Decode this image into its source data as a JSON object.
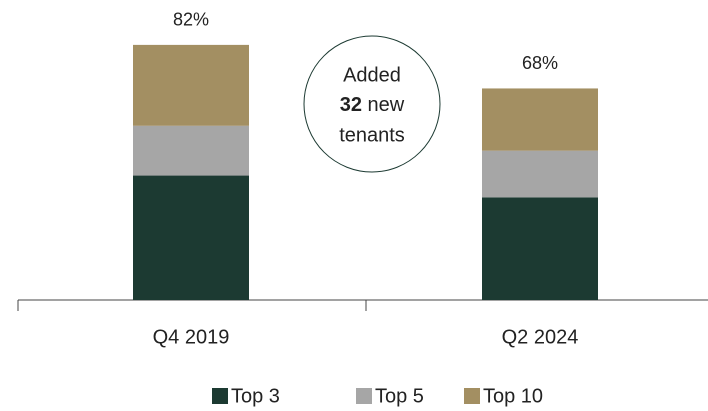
{
  "chart_data": {
    "type": "stacked_bar",
    "categories": [
      "Q4 2019",
      "Q2 2024"
    ],
    "series": [
      {
        "name": "Top 3",
        "color": "#1c3a32",
        "values": [
          40,
          33
        ]
      },
      {
        "name": "Top 5",
        "color": "#a6a6a6",
        "values": [
          16,
          15
        ]
      },
      {
        "name": "Top 10",
        "color": "#a38f62",
        "values": [
          26,
          20
        ]
      }
    ],
    "totals": {
      "values": [
        82,
        68
      ],
      "value_labels": [
        "82%",
        "68%"
      ]
    },
    "ylim": [
      0,
      90
    ],
    "annotation": {
      "line1": "Added",
      "number": "32",
      "line2": "new",
      "line3": "tenants"
    }
  }
}
